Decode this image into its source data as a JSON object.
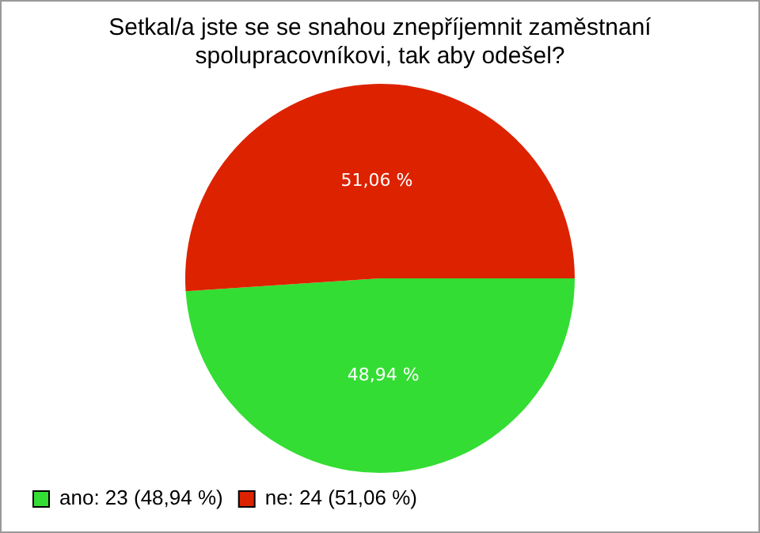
{
  "chart_data": {
    "type": "pie",
    "title": "Setkal/a jste se se snahou znepříjemnit zaměstnaní\nspolupracovníkovi, tak aby odešel?",
    "categories": [
      "ano: 23 (48,94 %)",
      "ne: 24 (51,06 %)"
    ],
    "values": [
      48.94,
      51.06
    ],
    "colors": [
      "#33dd33",
      "#dd2200"
    ],
    "value_labels": [
      "48,94 %",
      "51,06 %"
    ],
    "legend": "bottom left"
  }
}
